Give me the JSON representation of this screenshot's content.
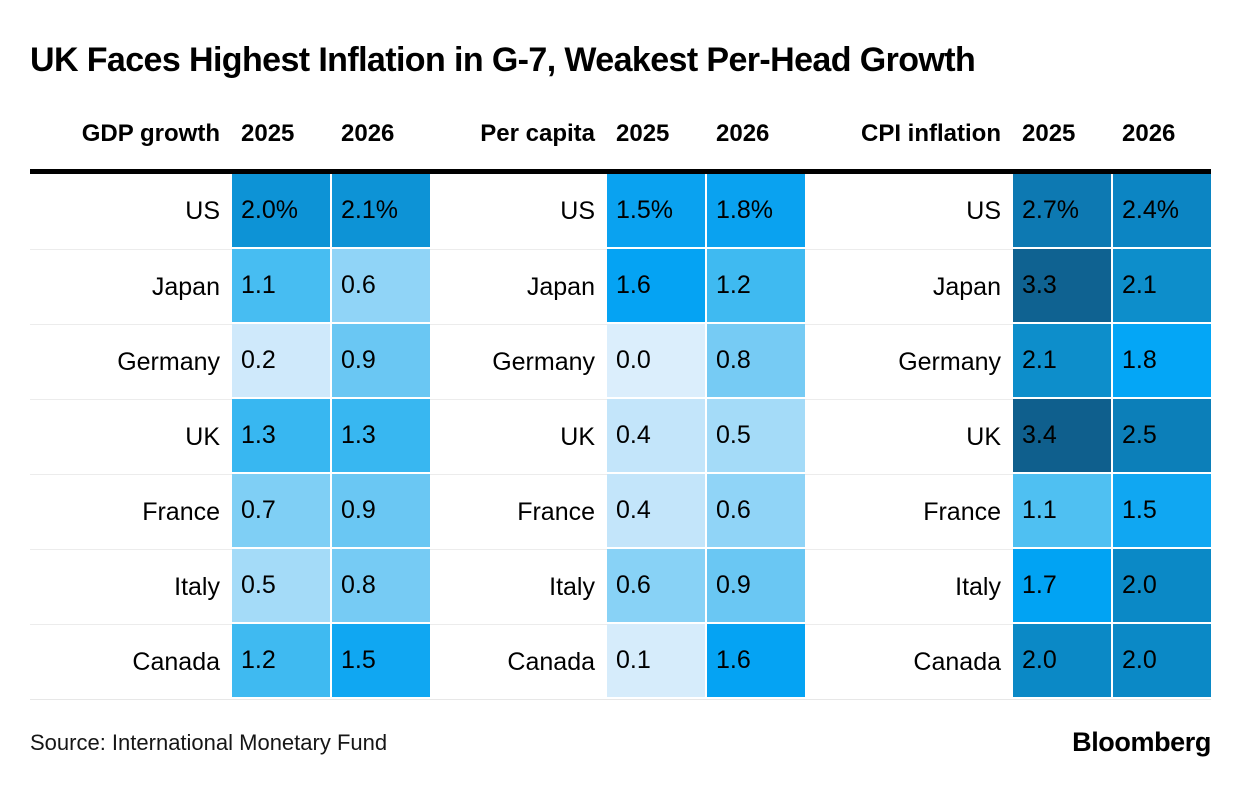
{
  "title": "UK Faces Highest Inflation in G-7, Weakest Per-Head Growth",
  "source": "Source: International Monetary Fund",
  "brand": "Bloomberg",
  "chart_data": {
    "type": "heatmap",
    "unit": "percent",
    "description": "Three heatmap tables (shared blue color ramp, light = low, bright/dark = high) of IMF forecasts for G-7 countries for 2025 and 2026: GDP growth, per-capita GDP growth, CPI inflation. Percent sign shown only on first row of each panel.",
    "countries": [
      "US",
      "Japan",
      "Germany",
      "UK",
      "France",
      "Italy",
      "Canada"
    ],
    "panels": [
      {
        "label": "GDP growth",
        "years": [
          "2025",
          "2026"
        ],
        "rows": [
          {
            "country": "US",
            "values": [
              2.0,
              2.1
            ],
            "cells": [
              {
                "v": "2.0%",
                "c": "#0d93d6"
              },
              {
                "v": "2.1%",
                "c": "#0d93d6"
              }
            ]
          },
          {
            "country": "Japan",
            "values": [
              1.1,
              0.6
            ],
            "cells": [
              {
                "v": "1.1",
                "c": "#47bdf2"
              },
              {
                "v": "0.6",
                "c": "#90d4f7"
              }
            ]
          },
          {
            "country": "Germany",
            "values": [
              0.2,
              0.9
            ],
            "cells": [
              {
                "v": "0.2",
                "c": "#cfe9fb"
              },
              {
                "v": "0.9",
                "c": "#6ac7f3"
              }
            ]
          },
          {
            "country": "UK",
            "values": [
              1.3,
              1.3
            ],
            "cells": [
              {
                "v": "1.3",
                "c": "#38b7f1"
              },
              {
                "v": "1.3",
                "c": "#38b7f1"
              }
            ]
          },
          {
            "country": "France",
            "values": [
              0.7,
              0.9
            ],
            "cells": [
              {
                "v": "0.7",
                "c": "#7fcff5"
              },
              {
                "v": "0.9",
                "c": "#6ac7f3"
              }
            ]
          },
          {
            "country": "Italy",
            "values": [
              0.5,
              0.8
            ],
            "cells": [
              {
                "v": "0.5",
                "c": "#a4dbf8"
              },
              {
                "v": "0.8",
                "c": "#76cbf4"
              }
            ]
          },
          {
            "country": "Canada",
            "values": [
              1.2,
              1.5
            ],
            "cells": [
              {
                "v": "1.2",
                "c": "#3fbaf1"
              },
              {
                "v": "1.5",
                "c": "#10a7f2"
              }
            ]
          }
        ]
      },
      {
        "label": "Per capita",
        "years": [
          "2025",
          "2026"
        ],
        "rows": [
          {
            "country": "US",
            "values": [
              1.5,
              1.8
            ],
            "cells": [
              {
                "v": "1.5%",
                "c": "#0aa2f0"
              },
              {
                "v": "1.8%",
                "c": "#0aa2f0"
              }
            ]
          },
          {
            "country": "Japan",
            "values": [
              1.6,
              1.2
            ],
            "cells": [
              {
                "v": "1.6",
                "c": "#05a3f3"
              },
              {
                "v": "1.2",
                "c": "#3fbaf1"
              }
            ]
          },
          {
            "country": "Germany",
            "values": [
              0.0,
              0.8
            ],
            "cells": [
              {
                "v": "0.0",
                "c": "#dbeefc"
              },
              {
                "v": "0.8",
                "c": "#76cbf4"
              }
            ]
          },
          {
            "country": "UK",
            "values": [
              0.4,
              0.5
            ],
            "cells": [
              {
                "v": "0.4",
                "c": "#c3e5fa"
              },
              {
                "v": "0.5",
                "c": "#a4dbf8"
              }
            ]
          },
          {
            "country": "France",
            "values": [
              0.4,
              0.6
            ],
            "cells": [
              {
                "v": "0.4",
                "c": "#c3e5fa"
              },
              {
                "v": "0.6",
                "c": "#90d4f7"
              }
            ]
          },
          {
            "country": "Italy",
            "values": [
              0.6,
              0.9
            ],
            "cells": [
              {
                "v": "0.6",
                "c": "#88d2f6"
              },
              {
                "v": "0.9",
                "c": "#6ac7f3"
              }
            ]
          },
          {
            "country": "Canada",
            "values": [
              0.1,
              1.6
            ],
            "cells": [
              {
                "v": "0.1",
                "c": "#d6ecfb"
              },
              {
                "v": "1.6",
                "c": "#05a3f3"
              }
            ]
          }
        ]
      },
      {
        "label": "CPI inflation",
        "years": [
          "2025",
          "2026"
        ],
        "rows": [
          {
            "country": "US",
            "values": [
              2.7,
              2.4
            ],
            "cells": [
              {
                "v": "2.7%",
                "c": "#0d79b2"
              },
              {
                "v": "2.4%",
                "c": "#0c85c3"
              }
            ]
          },
          {
            "country": "Japan",
            "values": [
              3.3,
              2.1
            ],
            "cells": [
              {
                "v": "3.3",
                "c": "#0f6291"
              },
              {
                "v": "2.1",
                "c": "#0d8ecb"
              }
            ]
          },
          {
            "country": "Germany",
            "values": [
              2.1,
              1.8
            ],
            "cells": [
              {
                "v": "2.1",
                "c": "#0d8ecb"
              },
              {
                "v": "1.8",
                "c": "#04a6f6"
              }
            ]
          },
          {
            "country": "UK",
            "values": [
              3.4,
              2.5
            ],
            "cells": [
              {
                "v": "3.4",
                "c": "#0f5f8d"
              },
              {
                "v": "2.5",
                "c": "#0c7fb9"
              }
            ]
          },
          {
            "country": "France",
            "values": [
              1.1,
              1.5
            ],
            "cells": [
              {
                "v": "1.1",
                "c": "#4fc0f2"
              },
              {
                "v": "1.5",
                "c": "#10a7f2"
              }
            ]
          },
          {
            "country": "Italy",
            "values": [
              1.7,
              2.0
            ],
            "cells": [
              {
                "v": "1.7",
                "c": "#01a3f3"
              },
              {
                "v": "2.0",
                "c": "#0b89c6"
              }
            ]
          },
          {
            "country": "Canada",
            "values": [
              2.0,
              2.0
            ],
            "cells": [
              {
                "v": "2.0",
                "c": "#0b89c6"
              },
              {
                "v": "2.0",
                "c": "#0b89c6"
              }
            ]
          }
        ]
      }
    ]
  }
}
